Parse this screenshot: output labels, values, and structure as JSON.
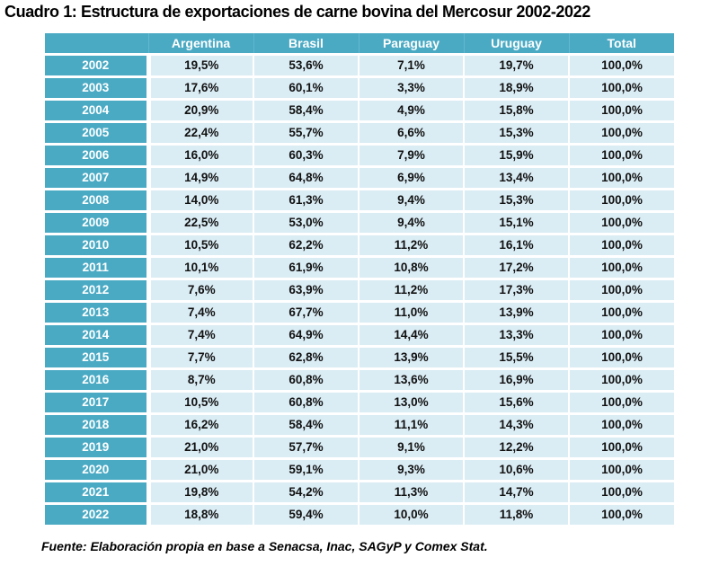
{
  "title": "Cuadro 1: Estructura de exportaciones de carne bovina del Mercosur 2002-2022",
  "source_note": "Fuente: Elaboración propia en base a Senacsa, Inac, SAGyP y Comex Stat.",
  "colors": {
    "header_teal": "#4aaac4",
    "cell_light_blue": "#daecf4",
    "header_text": "#ffffff",
    "cell_text": "#111111",
    "background": "#ffffff"
  },
  "chart_data": {
    "type": "table",
    "title": "Cuadro 1: Estructura de exportaciones de carne bovina del Mercosur 2002-2022",
    "columns": [
      "Argentina",
      "Brasil",
      "Paraguay",
      "Uruguay",
      "Total"
    ],
    "rows": [
      {
        "year": "2002",
        "values": [
          "19,5%",
          "53,6%",
          "7,1%",
          "19,7%",
          "100,0%"
        ]
      },
      {
        "year": "2003",
        "values": [
          "17,6%",
          "60,1%",
          "3,3%",
          "18,9%",
          "100,0%"
        ]
      },
      {
        "year": "2004",
        "values": [
          "20,9%",
          "58,4%",
          "4,9%",
          "15,8%",
          "100,0%"
        ]
      },
      {
        "year": "2005",
        "values": [
          "22,4%",
          "55,7%",
          "6,6%",
          "15,3%",
          "100,0%"
        ]
      },
      {
        "year": "2006",
        "values": [
          "16,0%",
          "60,3%",
          "7,9%",
          "15,9%",
          "100,0%"
        ]
      },
      {
        "year": "2007",
        "values": [
          "14,9%",
          "64,8%",
          "6,9%",
          "13,4%",
          "100,0%"
        ]
      },
      {
        "year": "2008",
        "values": [
          "14,0%",
          "61,3%",
          "9,4%",
          "15,3%",
          "100,0%"
        ]
      },
      {
        "year": "2009",
        "values": [
          "22,5%",
          "53,0%",
          "9,4%",
          "15,1%",
          "100,0%"
        ]
      },
      {
        "year": "2010",
        "values": [
          "10,5%",
          "62,2%",
          "11,2%",
          "16,1%",
          "100,0%"
        ]
      },
      {
        "year": "2011",
        "values": [
          "10,1%",
          "61,9%",
          "10,8%",
          "17,2%",
          "100,0%"
        ]
      },
      {
        "year": "2012",
        "values": [
          "7,6%",
          "63,9%",
          "11,2%",
          "17,3%",
          "100,0%"
        ]
      },
      {
        "year": "2013",
        "values": [
          "7,4%",
          "67,7%",
          "11,0%",
          "13,9%",
          "100,0%"
        ]
      },
      {
        "year": "2014",
        "values": [
          "7,4%",
          "64,9%",
          "14,4%",
          "13,3%",
          "100,0%"
        ]
      },
      {
        "year": "2015",
        "values": [
          "7,7%",
          "62,8%",
          "13,9%",
          "15,5%",
          "100,0%"
        ]
      },
      {
        "year": "2016",
        "values": [
          "8,7%",
          "60,8%",
          "13,6%",
          "16,9%",
          "100,0%"
        ]
      },
      {
        "year": "2017",
        "values": [
          "10,5%",
          "60,8%",
          "13,0%",
          "15,6%",
          "100,0%"
        ]
      },
      {
        "year": "2018",
        "values": [
          "16,2%",
          "58,4%",
          "11,1%",
          "14,3%",
          "100,0%"
        ]
      },
      {
        "year": "2019",
        "values": [
          "21,0%",
          "57,7%",
          "9,1%",
          "12,2%",
          "100,0%"
        ]
      },
      {
        "year": "2020",
        "values": [
          "21,0%",
          "59,1%",
          "9,3%",
          "10,6%",
          "100,0%"
        ]
      },
      {
        "year": "2021",
        "values": [
          "19,8%",
          "54,2%",
          "11,3%",
          "14,7%",
          "100,0%"
        ]
      },
      {
        "year": "2022",
        "values": [
          "18,8%",
          "59,4%",
          "10,0%",
          "11,8%",
          "100,0%"
        ]
      }
    ]
  }
}
